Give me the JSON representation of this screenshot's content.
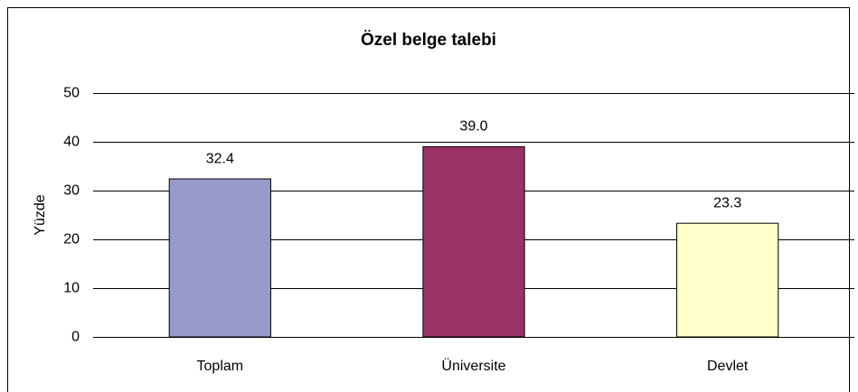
{
  "chart_data": {
    "type": "bar",
    "title": "Özel belge talebi",
    "y_label": "Yüzde",
    "categories": [
      "Toplam",
      "Üniversite",
      "Devlet"
    ],
    "values": [
      32.4,
      39.0,
      23.3
    ],
    "value_labels": [
      "32.4",
      "39.0",
      "23.3"
    ],
    "colors": [
      "#9999cc",
      "#993366",
      "#ffffcc"
    ],
    "ylim": [
      0,
      50
    ],
    "yticks": [
      0,
      10,
      20,
      30,
      40,
      50
    ],
    "grid": true
  }
}
